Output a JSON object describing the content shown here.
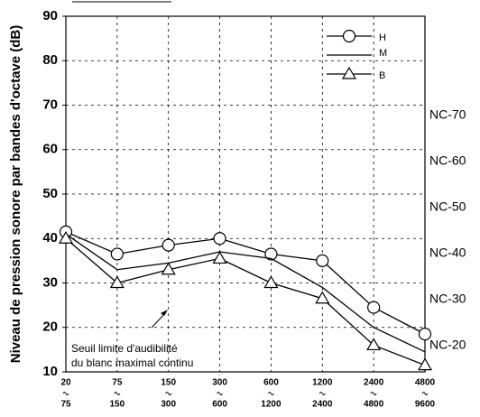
{
  "chart_data": {
    "type": "line",
    "ylabel": "Niveau de pression sonore par bandes d'octave (dB)",
    "categories": [
      {
        "from": "20",
        "to": "75"
      },
      {
        "from": "75",
        "to": "150"
      },
      {
        "from": "150",
        "to": "300"
      },
      {
        "from": "300",
        "to": "600"
      },
      {
        "from": "600",
        "to": "1200"
      },
      {
        "from": "1200",
        "to": "2400"
      },
      {
        "from": "2400",
        "to": "4800"
      },
      {
        "from": "4800",
        "to": "9600"
      }
    ],
    "series": [
      {
        "name": "H",
        "marker": "circle",
        "color": "#000",
        "values": [
          41.5,
          36.5,
          38.5,
          40,
          36.5,
          35,
          24.5,
          18.5
        ]
      },
      {
        "name": "M",
        "marker": "none",
        "color": "#000",
        "values": [
          41,
          33,
          34.5,
          37,
          35.5,
          29,
          20,
          14.5
        ]
      },
      {
        "name": "B",
        "marker": "triangle",
        "color": "#000",
        "values": [
          40,
          30,
          33,
          35.5,
          30,
          26.5,
          16,
          11.5
        ]
      }
    ],
    "ylim": [
      10,
      90
    ],
    "yticks": [
      10,
      20,
      30,
      40,
      50,
      60,
      70,
      80,
      90
    ],
    "grid": true,
    "nc_labels": [
      "NC-70",
      "NC-60",
      "NC-50",
      "NC-40",
      "NC-30",
      "NC-20"
    ],
    "annotation": [
      "Seuil  limite  d'audibilité",
      "du blanc maximal continu"
    ]
  }
}
